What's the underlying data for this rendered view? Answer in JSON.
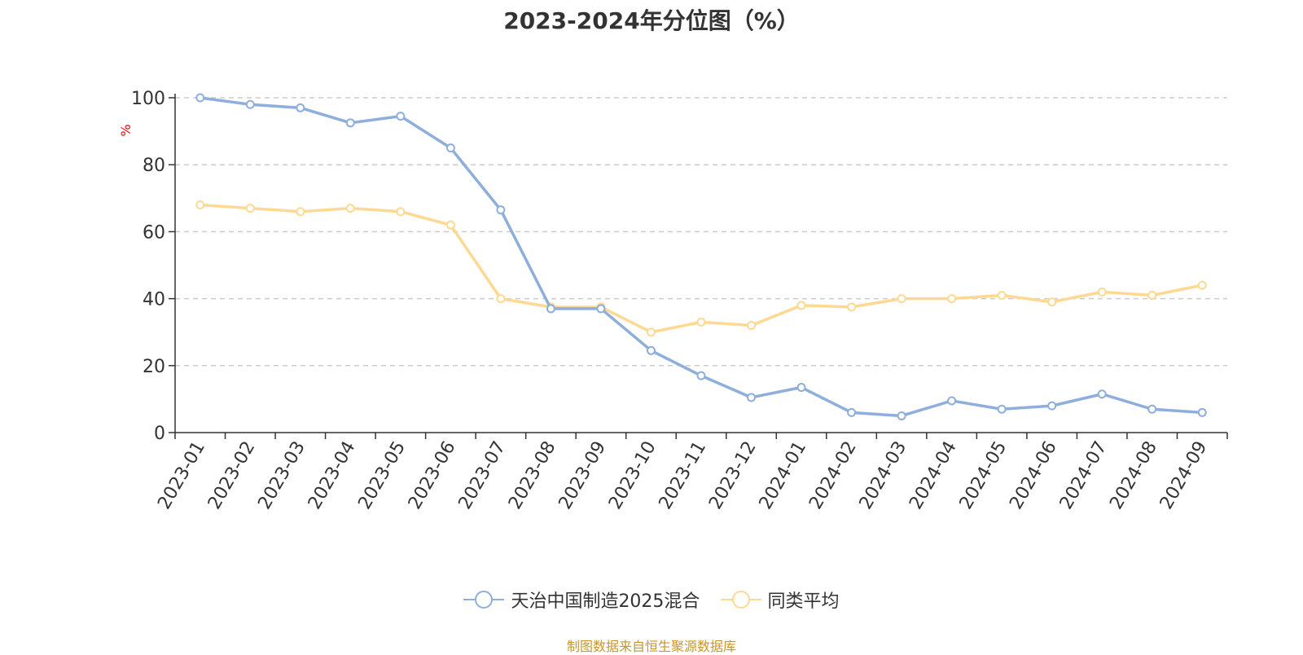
{
  "title": "2023-2024年分位图（%）",
  "source": "制图数据来自恒生聚源数据库",
  "colors": {
    "series1": "#8eaedb",
    "series2": "#ffd991",
    "axis": "#333333",
    "grid": "#cccccc",
    "ylabel": "#ff0000",
    "source": "#c8962c"
  },
  "chart_data": {
    "type": "line",
    "title": "2023-2024年分位图（%）",
    "xlabel": "",
    "ylabel": "%",
    "ylim": [
      0,
      100
    ],
    "yticks": [
      0,
      20,
      40,
      60,
      80,
      100
    ],
    "grid": true,
    "legend_position": "bottom-center",
    "categories": [
      "2023-01",
      "2023-02",
      "2023-03",
      "2023-04",
      "2023-05",
      "2023-06",
      "2023-07",
      "2023-08",
      "2023-09",
      "2023-10",
      "2023-11",
      "2023-12",
      "2024-01",
      "2024-02",
      "2024-03",
      "2024-04",
      "2024-05",
      "2024-06",
      "2024-07",
      "2024-08",
      "2024-09"
    ],
    "series": [
      {
        "name": "天治中国制造2025混合",
        "values": [
          100,
          98,
          97,
          92.5,
          94.5,
          85,
          66.5,
          37,
          37,
          24.5,
          17,
          10.5,
          13.5,
          6,
          5,
          9.5,
          7,
          8,
          11.5,
          7,
          6
        ]
      },
      {
        "name": "同类平均",
        "values": [
          68,
          67,
          66,
          67,
          66,
          62,
          40,
          37.5,
          37.5,
          30,
          33,
          32,
          38,
          37.5,
          40,
          40,
          41,
          39,
          42,
          41,
          44
        ]
      }
    ]
  }
}
